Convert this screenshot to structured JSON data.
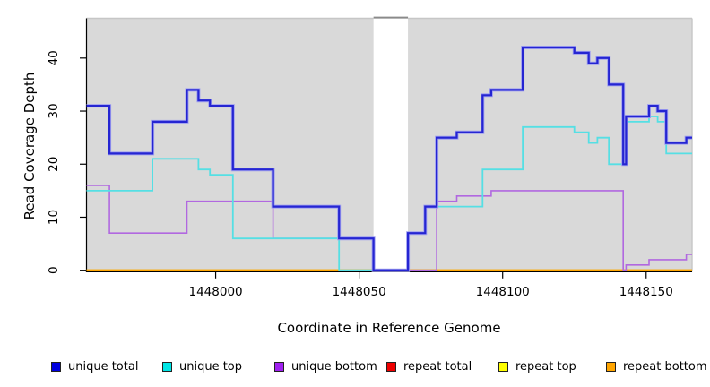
{
  "chart_data": {
    "type": "line",
    "variant": "step",
    "title": "",
    "xlabel": "Coordinate in Reference Genome",
    "ylabel": "Read Coverage Depth",
    "xlim": [
      1447955,
      1448166
    ],
    "ylim": [
      0,
      47.5
    ],
    "x_ticks": [
      1448000,
      1448050,
      1448100,
      1448150
    ],
    "y_ticks": [
      0,
      10,
      20,
      30,
      40
    ],
    "grid": "off",
    "panel_bg": "#d9d9d9",
    "legend_position": "bottom",
    "gap_region": {
      "start": 1448055,
      "end": 1448067
    },
    "series": [
      {
        "name": "repeat total",
        "color": "#dd0000",
        "width": 2,
        "points": [
          [
            1447955,
            0
          ],
          [
            1448166,
            0
          ]
        ]
      },
      {
        "name": "repeat top",
        "color": "#ffff00",
        "width": 2,
        "points": [
          [
            1447955,
            0
          ],
          [
            1448166,
            0
          ]
        ]
      },
      {
        "name": "repeat bottom",
        "color": "#ffa500",
        "width": 2,
        "points": [
          [
            1447955,
            0
          ],
          [
            1448166,
            0
          ]
        ]
      },
      {
        "name": "unique bottom",
        "color": "#b168e0",
        "width": 1.6,
        "points": [
          [
            1447955,
            16
          ],
          [
            1447963,
            7
          ],
          [
            1447990,
            13
          ],
          [
            1448020,
            6
          ],
          [
            1448055,
            0
          ],
          [
            1448077,
            13
          ],
          [
            1448084,
            14
          ],
          [
            1448096,
            15
          ],
          [
            1448142,
            0
          ],
          [
            1448143,
            1
          ],
          [
            1448151,
            2
          ],
          [
            1448164,
            3
          ],
          [
            1448166,
            3
          ]
        ]
      },
      {
        "name": "unique top",
        "color": "#55dfe4",
        "width": 1.8,
        "points": [
          [
            1447955,
            15
          ],
          [
            1447978,
            21
          ],
          [
            1447994,
            19
          ],
          [
            1447998,
            18
          ],
          [
            1448006,
            6
          ],
          [
            1448043,
            0
          ],
          [
            1448067,
            7
          ],
          [
            1448073,
            12
          ],
          [
            1448093,
            19
          ],
          [
            1448107,
            27
          ],
          [
            1448125,
            26
          ],
          [
            1448130,
            24
          ],
          [
            1448133,
            25
          ],
          [
            1448137,
            20
          ],
          [
            1448143,
            28
          ],
          [
            1448151,
            29
          ],
          [
            1448154,
            28
          ],
          [
            1448157,
            22
          ],
          [
            1448166,
            22
          ]
        ]
      },
      {
        "name": "unique total",
        "color": "#2525d2",
        "halo": "#a0a0f0",
        "width": 2.2,
        "points": [
          [
            1447955,
            31
          ],
          [
            1447963,
            22
          ],
          [
            1447978,
            28
          ],
          [
            1447990,
            34
          ],
          [
            1447994,
            32
          ],
          [
            1447998,
            31
          ],
          [
            1448006,
            19
          ],
          [
            1448020,
            12
          ],
          [
            1448043,
            6
          ],
          [
            1448055,
            0
          ],
          [
            1448067,
            7
          ],
          [
            1448073,
            12
          ],
          [
            1448077,
            25
          ],
          [
            1448084,
            26
          ],
          [
            1448093,
            33
          ],
          [
            1448096,
            34
          ],
          [
            1448107,
            42
          ],
          [
            1448125,
            41
          ],
          [
            1448130,
            39
          ],
          [
            1448133,
            40
          ],
          [
            1448137,
            35
          ],
          [
            1448142,
            20
          ],
          [
            1448143,
            29
          ],
          [
            1448151,
            31
          ],
          [
            1448154,
            30
          ],
          [
            1448157,
            24
          ],
          [
            1448164,
            25
          ],
          [
            1448166,
            25
          ]
        ]
      }
    ],
    "legend": [
      {
        "label": "unique total",
        "color": "#0000e0"
      },
      {
        "label": "unique top",
        "color": "#00e5e5"
      },
      {
        "label": "unique bottom",
        "color": "#a020f0"
      },
      {
        "label": "repeat total",
        "color": "#ee0000"
      },
      {
        "label": "repeat top",
        "color": "#ffff00"
      },
      {
        "label": "repeat bottom",
        "color": "#ffa500"
      }
    ]
  }
}
